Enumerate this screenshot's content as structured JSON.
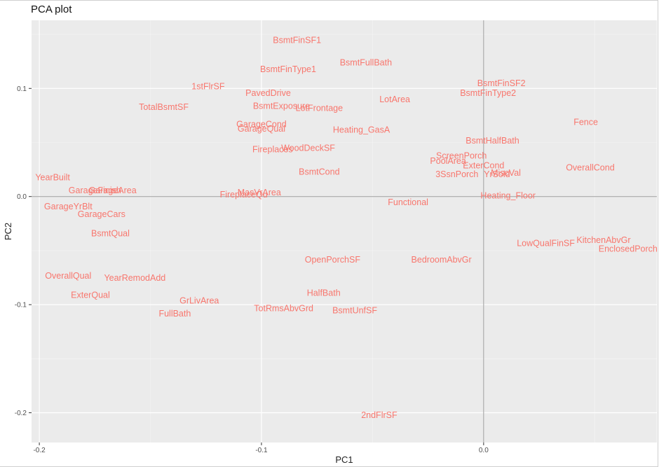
{
  "chart_data": {
    "type": "scatter",
    "title": "PCA plot",
    "xlabel": "PC1",
    "ylabel": "PC2",
    "xlim": [
      -0.2035,
      0.078
    ],
    "ylim": [
      -0.2275,
      0.163
    ],
    "x_ticks": [
      -0.2,
      -0.1,
      0.0
    ],
    "y_ticks": [
      -0.2,
      -0.1,
      0.0,
      0.1
    ],
    "x_tick_labels": [
      "-0.2",
      "-0.1",
      "0.0"
    ],
    "y_tick_labels": [
      "-0.2",
      "-0.1",
      "0.0",
      "0.1"
    ],
    "grid": true,
    "reference_lines": {
      "x": 0.0,
      "y": 0.0
    },
    "label_color": "#f8766d",
    "panel_color": "#ebebeb",
    "points": [
      {
        "label": "BsmtFinSF1",
        "x": -0.084,
        "y": 0.145
      },
      {
        "label": "BsmtFullBath",
        "x": -0.053,
        "y": 0.124
      },
      {
        "label": "BsmtFinType1",
        "x": -0.088,
        "y": 0.118
      },
      {
        "label": "1stFlrSF",
        "x": -0.124,
        "y": 0.102
      },
      {
        "label": "PavedDrive",
        "x": -0.097,
        "y": 0.096
      },
      {
        "label": "BsmtFinSF2",
        "x": 0.008,
        "y": 0.105
      },
      {
        "label": "BsmtFinType2",
        "x": 0.002,
        "y": 0.096
      },
      {
        "label": "LotArea",
        "x": -0.04,
        "y": 0.09
      },
      {
        "label": "TotalBsmtSF",
        "x": -0.144,
        "y": 0.083
      },
      {
        "label": "BsmtExposure",
        "x": -0.091,
        "y": 0.084
      },
      {
        "label": "LotFrontage",
        "x": -0.074,
        "y": 0.082
      },
      {
        "label": "Fence",
        "x": 0.046,
        "y": 0.069
      },
      {
        "label": "GarageCond",
        "x": -0.1,
        "y": 0.067
      },
      {
        "label": "GarageQual",
        "x": -0.1,
        "y": 0.063
      },
      {
        "label": "Heating_GasA",
        "x": -0.055,
        "y": 0.062
      },
      {
        "label": "BsmtHalfBath",
        "x": 0.004,
        "y": 0.052
      },
      {
        "label": "Fireplaces",
        "x": -0.095,
        "y": 0.044
      },
      {
        "label": "WoodDeckSF",
        "x": -0.079,
        "y": 0.045
      },
      {
        "label": "ScreenPorch",
        "x": -0.01,
        "y": 0.038
      },
      {
        "label": "PoolArea",
        "x": -0.016,
        "y": 0.033
      },
      {
        "label": "ExterCond",
        "x": 0.0,
        "y": 0.029
      },
      {
        "label": "OverallCond",
        "x": 0.048,
        "y": 0.027
      },
      {
        "label": "YearBuilt",
        "x": -0.194,
        "y": 0.018
      },
      {
        "label": "BsmtCond",
        "x": -0.074,
        "y": 0.023
      },
      {
        "label": "3SsnPorch",
        "x": -0.012,
        "y": 0.021
      },
      {
        "label": "YrSold",
        "x": 0.006,
        "y": 0.021
      },
      {
        "label": "MiscVal",
        "x": 0.01,
        "y": 0.022
      },
      {
        "label": "GarageFinish",
        "x": -0.175,
        "y": 0.006
      },
      {
        "label": "GarageArea",
        "x": -0.167,
        "y": 0.006
      },
      {
        "label": "MasVrArea",
        "x": -0.101,
        "y": 0.004
      },
      {
        "label": "FireplaceQu",
        "x": -0.108,
        "y": 0.002
      },
      {
        "label": "Heating_Floor",
        "x": 0.011,
        "y": 0.001
      },
      {
        "label": "Functional",
        "x": -0.034,
        "y": -0.005
      },
      {
        "label": "GarageYrBlt",
        "x": -0.187,
        "y": -0.009
      },
      {
        "label": "GarageCars",
        "x": -0.172,
        "y": -0.016
      },
      {
        "label": "BsmtQual",
        "x": -0.168,
        "y": -0.034
      },
      {
        "label": "LowQualFinSF",
        "x": 0.028,
        "y": -0.043
      },
      {
        "label": "KitchenAbvGr",
        "x": 0.054,
        "y": -0.04
      },
      {
        "label": "EnclosedPorch",
        "x": 0.065,
        "y": -0.048
      },
      {
        "label": "OpenPorchSF",
        "x": -0.068,
        "y": -0.058
      },
      {
        "label": "BedroomAbvGr",
        "x": -0.019,
        "y": -0.058
      },
      {
        "label": "OverallQual",
        "x": -0.187,
        "y": -0.073
      },
      {
        "label": "YearRemodAdd",
        "x": -0.157,
        "y": -0.075
      },
      {
        "label": "ExterQual",
        "x": -0.177,
        "y": -0.091
      },
      {
        "label": "HalfBath",
        "x": -0.072,
        "y": -0.089
      },
      {
        "label": "GrLivArea",
        "x": -0.128,
        "y": -0.096
      },
      {
        "label": "TotRmsAbvGrd",
        "x": -0.09,
        "y": -0.103
      },
      {
        "label": "BsmtUnfSF",
        "x": -0.058,
        "y": -0.105
      },
      {
        "label": "FullBath",
        "x": -0.139,
        "y": -0.108
      },
      {
        "label": "2ndFlrSF",
        "x": -0.047,
        "y": -0.202
      }
    ]
  }
}
